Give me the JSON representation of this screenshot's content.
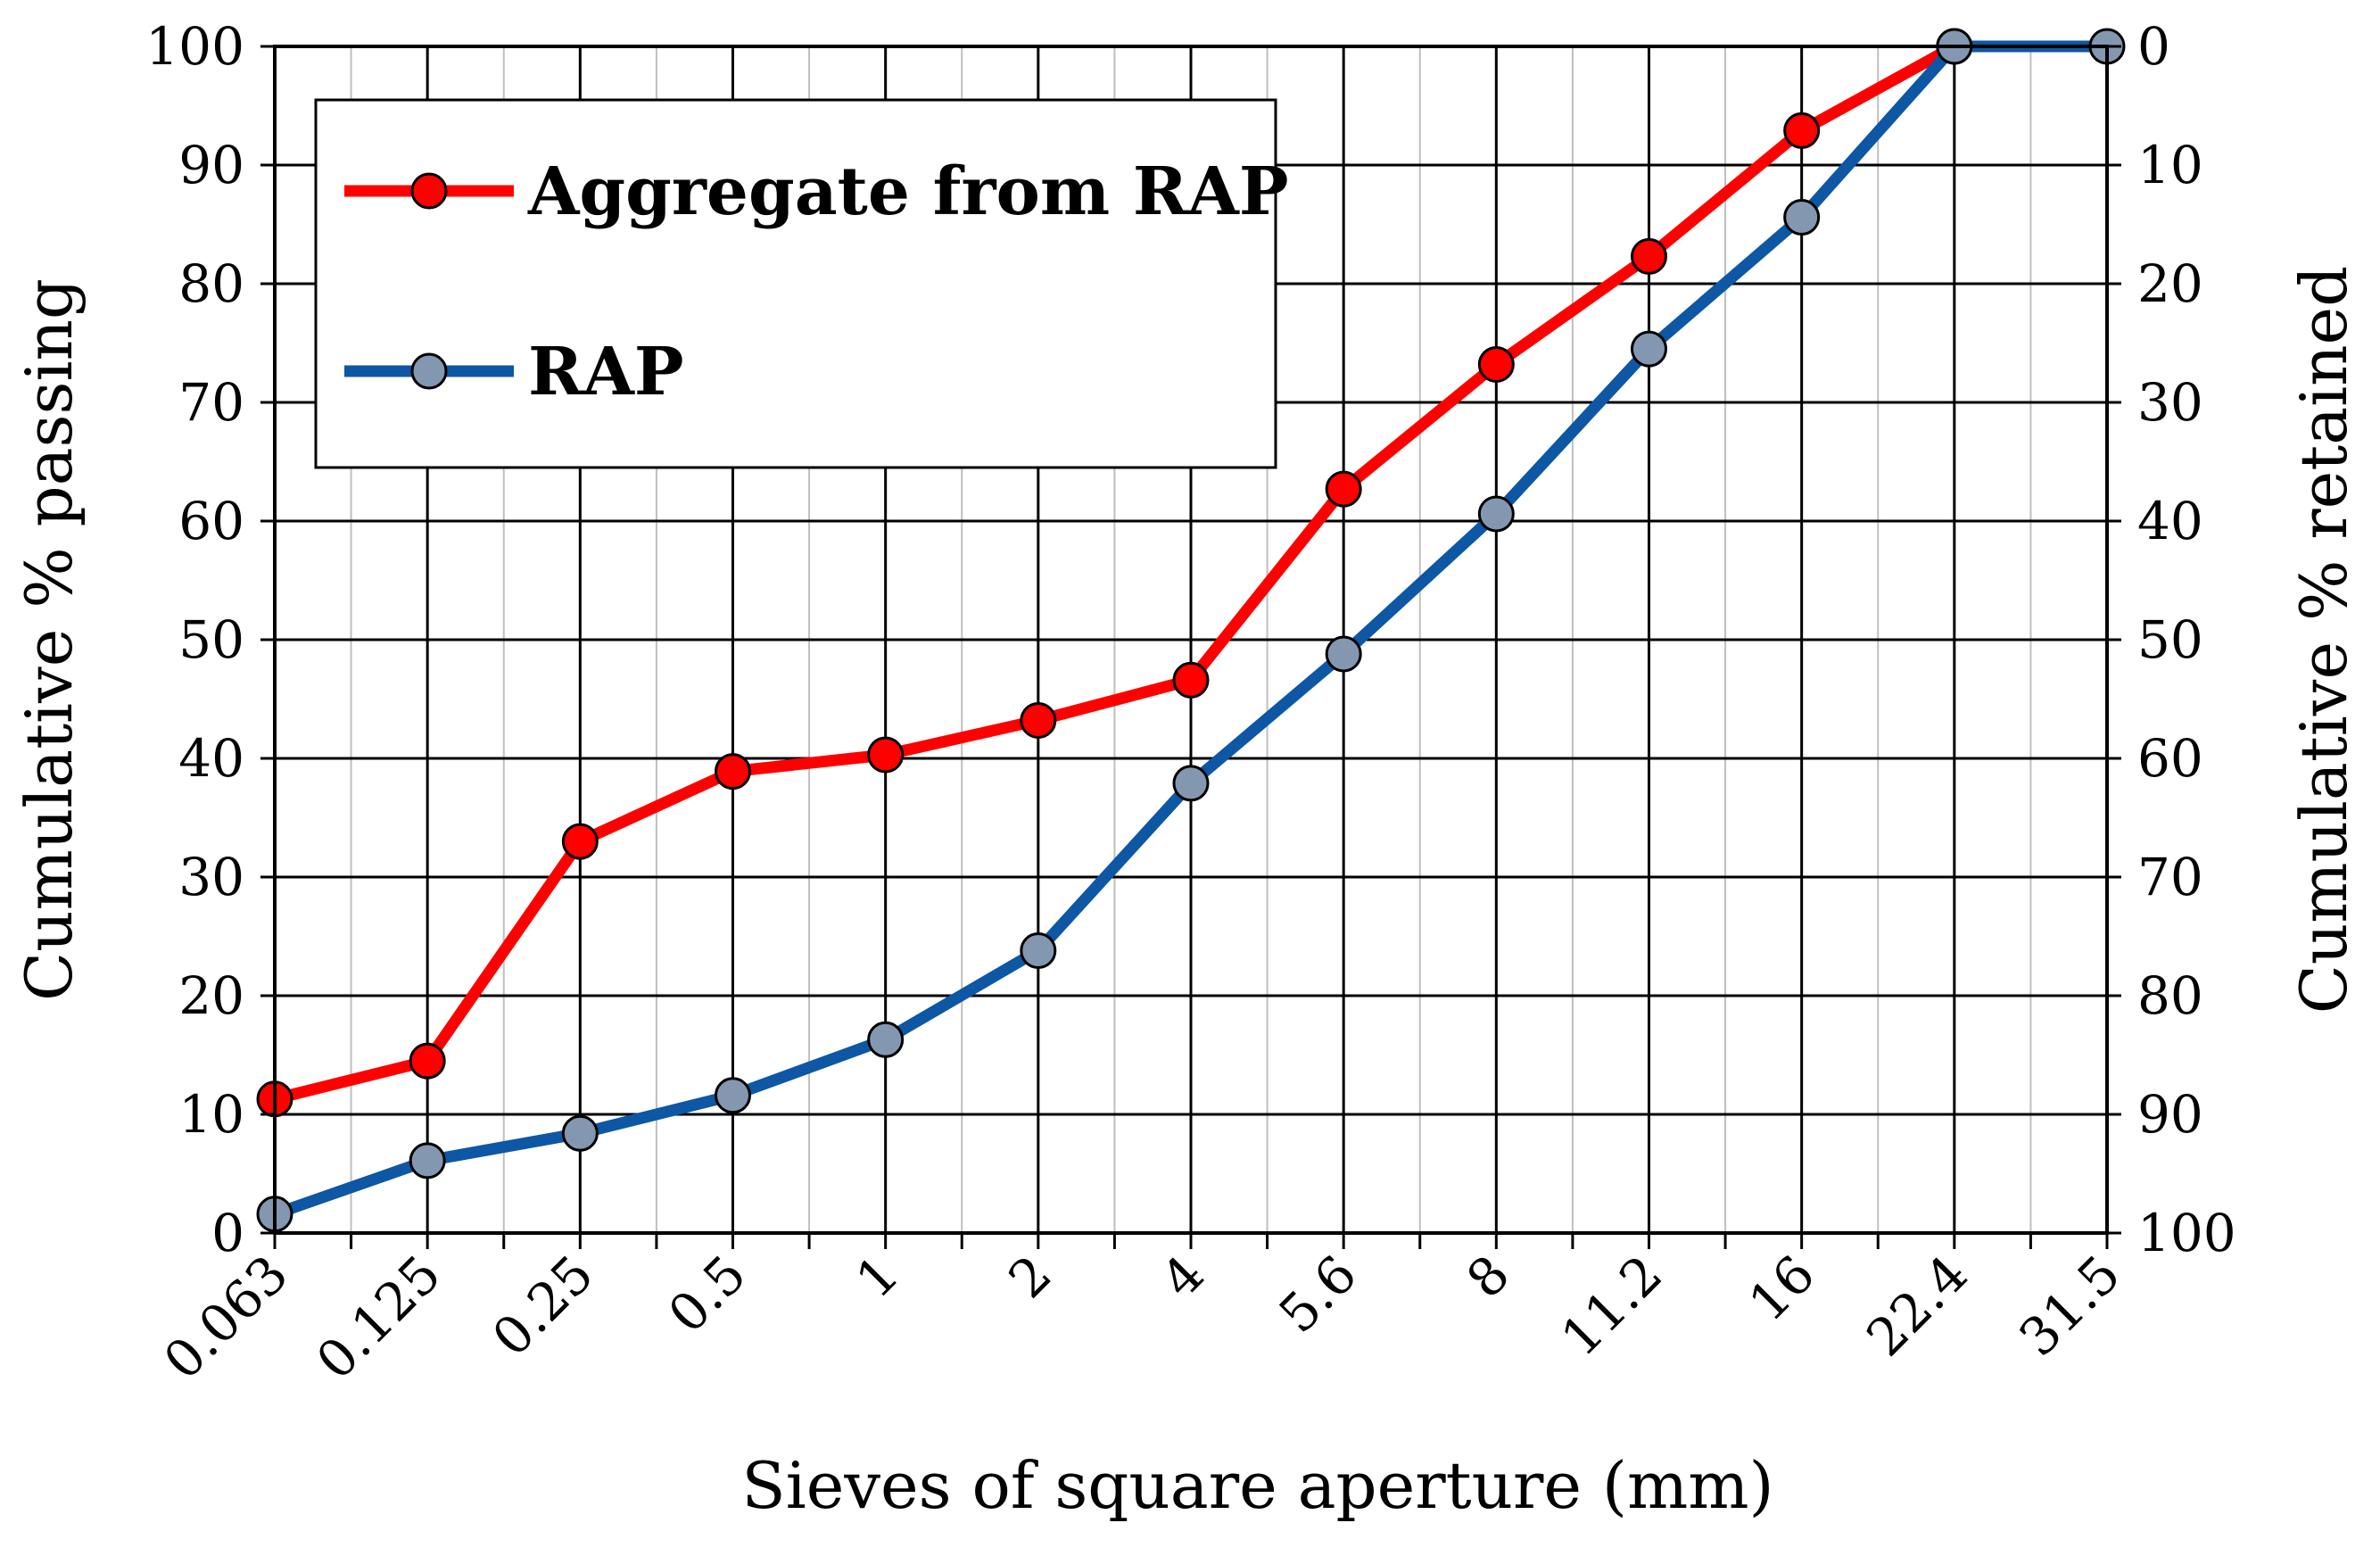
{
  "chart_data": {
    "type": "line",
    "x_axis_kind": "categorical",
    "categories": [
      "0.063",
      "0.125",
      "0.25",
      "0.5",
      "1",
      "2",
      "4",
      "5.6",
      "8",
      "11.2",
      "16",
      "22.4",
      "31.5"
    ],
    "xlabel": "Sieves of square aperture (mm)",
    "ylabel": "Cumulative % passing",
    "y2label": "Cumulative % retained",
    "ylim": [
      0,
      100
    ],
    "y2lim": [
      100,
      0
    ],
    "yticks": [
      "0",
      "10",
      "20",
      "30",
      "40",
      "50",
      "60",
      "70",
      "80",
      "90",
      "100"
    ],
    "y2ticks": [
      "100",
      "90",
      "80",
      "70",
      "60",
      "50",
      "40",
      "30",
      "20",
      "10",
      "0"
    ],
    "grid": true,
    "legend_position": "top-left",
    "series": [
      {
        "name": "Aggregate from RAP",
        "line_color": "#ff0000",
        "marker_color": "#ff0000",
        "values": [
          11.3,
          14.5,
          33.0,
          38.9,
          40.3,
          43.2,
          46.6,
          62.7,
          73.2,
          82.3,
          92.9,
          100,
          null
        ]
      },
      {
        "name": "RAP",
        "line_color": "#0d57a4",
        "marker_color": "#8497b0",
        "values": [
          1.6,
          6.1,
          8.4,
          11.6,
          16.3,
          23.8,
          37.9,
          48.8,
          60.6,
          74.5,
          85.6,
          100,
          100
        ]
      }
    ]
  }
}
